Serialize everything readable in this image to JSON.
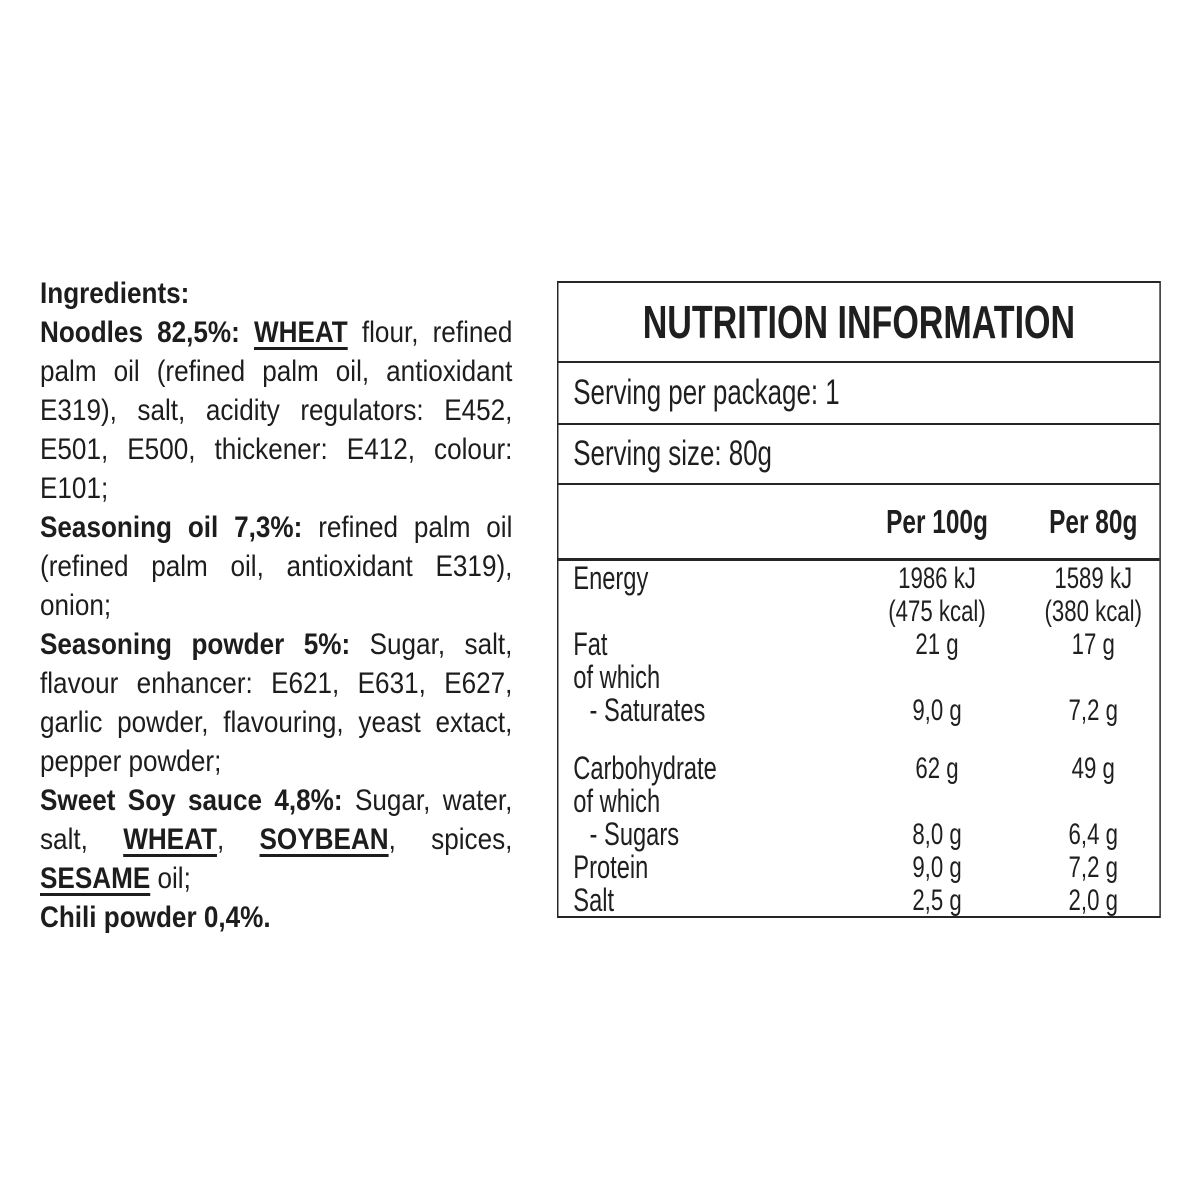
{
  "page": {
    "background": "#ffffff",
    "text_color": "#1d1d1d",
    "border_color": "#262626"
  },
  "ingredients": {
    "paragraphs": [
      [
        [
          {
            "t": "Ingredients:",
            "b": true
          }
        ]
      ],
      [
        [
          {
            "t": "Noodles 82,5%: ",
            "b": true
          },
          {
            "t": "WHEAT",
            "b": true,
            "u": true
          },
          {
            "t": " flour, refined"
          }
        ],
        [
          {
            "t": "palm oil (refined palm oil, antioxidant"
          }
        ],
        [
          {
            "t": "E319), salt, acidity regulators: E452,"
          }
        ],
        [
          {
            "t": "E501, E500, thickener: E412, colour:"
          }
        ],
        [
          {
            "t": "E101;"
          }
        ]
      ],
      [
        [
          {
            "t": "Seasoning oil 7,3%: ",
            "b": true
          },
          {
            "t": "refined palm oil"
          }
        ],
        [
          {
            "t": "(refined palm oil, antioxidant E319),"
          }
        ],
        [
          {
            "t": "onion;"
          }
        ]
      ],
      [
        [
          {
            "t": "Seasoning powder 5%: ",
            "b": true
          },
          {
            "t": "Sugar, salt,"
          }
        ],
        [
          {
            "t": "flavour enhancer: E621, E631, E627,"
          }
        ],
        [
          {
            "t": "garlic powder, flavouring, yeast extact,"
          }
        ],
        [
          {
            "t": "pepper powder;"
          }
        ]
      ],
      [
        [
          {
            "t": "Sweet Soy sauce 4,8%: ",
            "b": true
          },
          {
            "t": "Sugar, water,"
          }
        ],
        [
          {
            "t": "salt, "
          },
          {
            "t": "WHEAT",
            "b": true,
            "u": true
          },
          {
            "t": ", "
          },
          {
            "t": "SOYBEAN",
            "b": true,
            "u": true
          },
          {
            "t": ", spices,"
          }
        ],
        [
          {
            "t": "SESAME",
            "b": true,
            "u": true
          },
          {
            "t": " oil;"
          }
        ]
      ],
      [
        [
          {
            "t": "Chili powder 0,4%.",
            "b": true
          }
        ]
      ]
    ]
  },
  "nutrition": {
    "title": "NUTRITION INFORMATION",
    "serving_per_package": "Serving per package: 1",
    "serving_size": "Serving size: 80g",
    "columns": [
      "Per 100g",
      "Per 80g"
    ],
    "rows": [
      {
        "label": "Energy",
        "per100": "1986 kJ",
        "per80": "1589 kJ"
      },
      {
        "label": "",
        "per100": "(475 kcal)",
        "per80": "(380 kcal)"
      },
      {
        "label": "Fat",
        "per100": "21 g",
        "per80": "17 g"
      },
      {
        "label": "of which",
        "per100": "",
        "per80": ""
      },
      {
        "label": "- Saturates",
        "indent": true,
        "per100": "9,0 g",
        "per80": "7,2 g"
      },
      {
        "spacer": true
      },
      {
        "label": "Carbohydrate",
        "per100": "62 g",
        "per80": "49 g"
      },
      {
        "label": "of which",
        "per100": "",
        "per80": ""
      },
      {
        "label": "- Sugars",
        "indent": true,
        "per100": "8,0 g",
        "per80": "6,4 g"
      },
      {
        "label": "Protein",
        "per100": "9,0 g",
        "per80": "7,2 g"
      },
      {
        "label": "Salt",
        "per100": "2,5 g",
        "per80": "2,0 g"
      }
    ]
  }
}
